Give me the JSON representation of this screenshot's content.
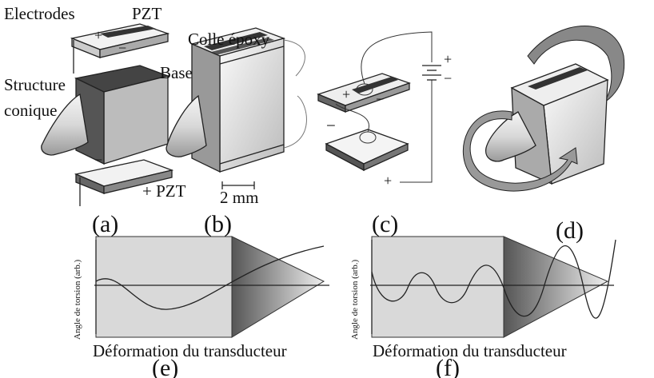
{
  "labels": {
    "electrodes": "Electrodes",
    "pzt_top": "PZT",
    "plus_top": "+",
    "minus_top": "−",
    "base": "Base",
    "structure": "Structure",
    "conique": "conique",
    "minus_bottom": "−",
    "pzt_bottom": "+ PZT",
    "colle": "Colle époxy",
    "scale": "2 mm",
    "c_plus_top": "+",
    "c_minus_top": "−",
    "c_minus_bottom": "−",
    "c_plus_bottom": "+",
    "batt_plus": "+",
    "batt_minus": "−"
  },
  "panel_letters": [
    "(a)",
    "(b)",
    "(c)",
    "(d)",
    "(e)",
    "(f)"
  ],
  "plots": [
    {
      "ylabel": "Angle de torsion (arb.)",
      "xlabel": "Déformation du transducteur"
    },
    {
      "ylabel": "Angle de torsion (arb.)",
      "xlabel": "Déformation du transducteur"
    }
  ]
}
